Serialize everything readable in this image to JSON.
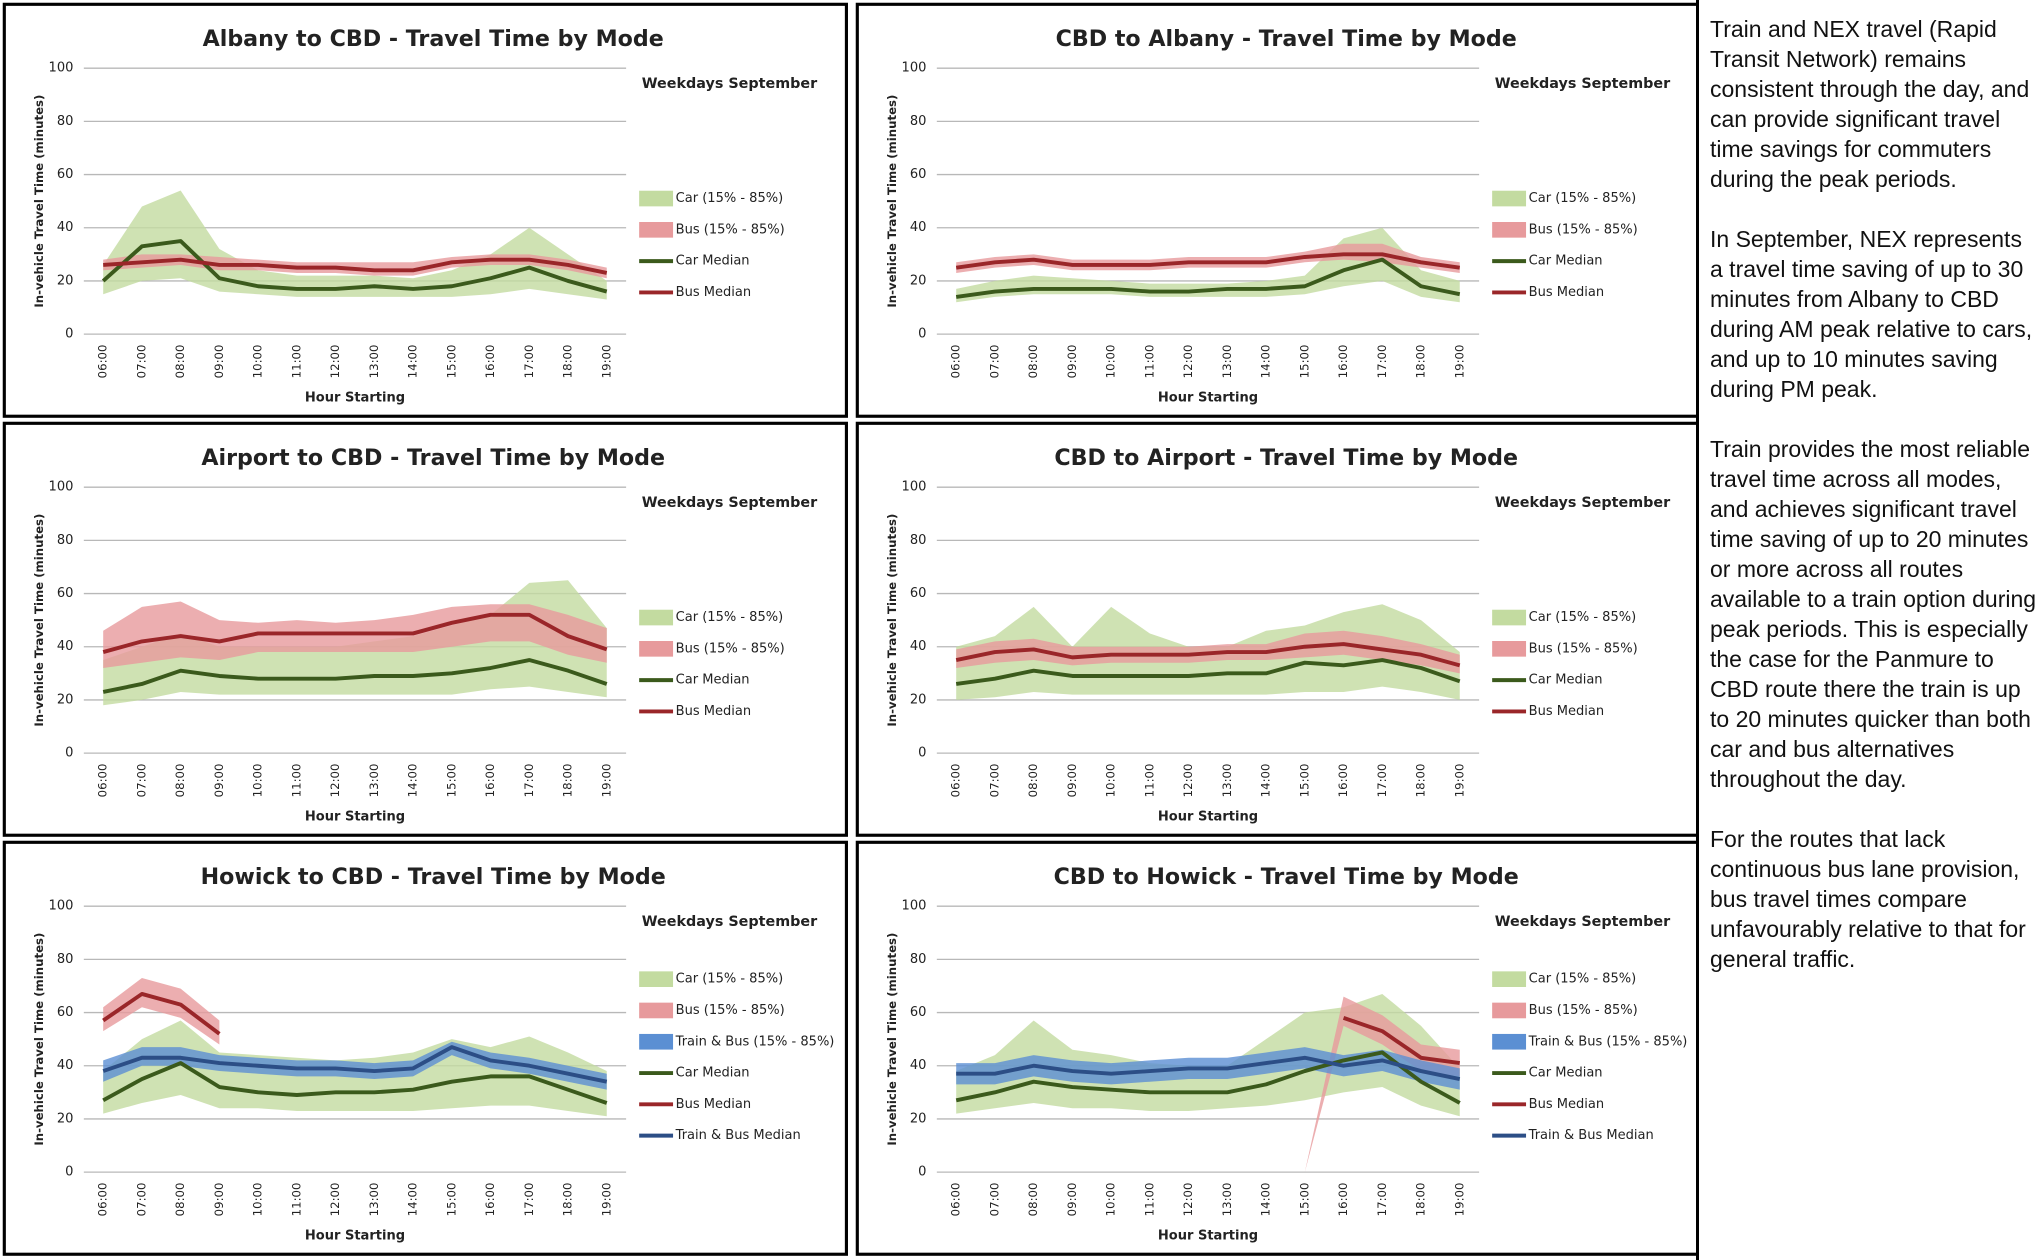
{
  "chart_data": [
    {
      "type": "line",
      "title": "Albany to CBD - Travel Time by Mode",
      "subtitle": "Weekdays September",
      "ylabel": "In-vehicle Travel Time (minutes)",
      "xlabel": "Hour Starting",
      "categories": [
        "06:00",
        "07:00",
        "08:00",
        "09:00",
        "10:00",
        "11:00",
        "12:00",
        "13:00",
        "14:00",
        "15:00",
        "16:00",
        "17:00",
        "18:00",
        "19:00"
      ],
      "ylim": [
        0,
        100
      ],
      "yticks": [
        0,
        20,
        40,
        60,
        80,
        100
      ],
      "grid": true,
      "series": [
        {
          "name": "Car (15% - 85%)",
          "color": "#c3dba0",
          "low": [
            15,
            20,
            21,
            16,
            15,
            14,
            14,
            14,
            14,
            14,
            15,
            17,
            15,
            13
          ],
          "high": [
            26,
            48,
            54,
            32,
            24,
            22,
            22,
            22,
            21,
            24,
            30,
            40,
            30,
            20
          ]
        },
        {
          "name": "Bus (15% - 85%)",
          "color": "#e79a9c",
          "low": [
            24,
            25,
            26,
            24,
            24,
            23,
            23,
            22,
            22,
            25,
            26,
            26,
            24,
            21
          ],
          "high": [
            28,
            30,
            30,
            29,
            28,
            27,
            27,
            27,
            27,
            29,
            30,
            30,
            28,
            25
          ]
        },
        {
          "name": "Car Median",
          "color": "#3b5a1c",
          "values": [
            20,
            33,
            35,
            21,
            18,
            17,
            17,
            18,
            17,
            18,
            21,
            25,
            20,
            16
          ]
        },
        {
          "name": "Bus Median",
          "color": "#9a2629",
          "values": [
            26,
            27,
            28,
            26,
            26,
            25,
            25,
            24,
            24,
            27,
            28,
            28,
            26,
            23
          ]
        }
      ]
    },
    {
      "type": "line",
      "title": "CBD to Albany - Travel Time by Mode",
      "subtitle": "Weekdays September",
      "ylabel": "In-vehicle Travel Time (minutes)",
      "xlabel": "Hour Starting",
      "categories": [
        "06:00",
        "07:00",
        "08:00",
        "09:00",
        "10:00",
        "11:00",
        "12:00",
        "13:00",
        "14:00",
        "15:00",
        "16:00",
        "17:00",
        "18:00",
        "19:00"
      ],
      "ylim": [
        0,
        100
      ],
      "yticks": [
        0,
        20,
        40,
        60,
        80,
        100
      ],
      "grid": true,
      "series": [
        {
          "name": "Car (15% - 85%)",
          "color": "#c3dba0",
          "low": [
            12,
            14,
            15,
            15,
            15,
            14,
            14,
            14,
            14,
            15,
            18,
            20,
            14,
            12
          ],
          "high": [
            17,
            20,
            22,
            21,
            20,
            19,
            19,
            19,
            20,
            22,
            36,
            40,
            24,
            20
          ]
        },
        {
          "name": "Bus (15% - 85%)",
          "color": "#e79a9c",
          "low": [
            23,
            25,
            26,
            24,
            24,
            24,
            25,
            25,
            25,
            27,
            28,
            27,
            25,
            23
          ],
          "high": [
            27,
            29,
            30,
            28,
            28,
            28,
            29,
            29,
            29,
            31,
            34,
            34,
            29,
            27
          ]
        },
        {
          "name": "Car Median",
          "color": "#3b5a1c",
          "values": [
            14,
            16,
            17,
            17,
            17,
            16,
            16,
            17,
            17,
            18,
            24,
            28,
            18,
            15
          ]
        },
        {
          "name": "Bus Median",
          "color": "#9a2629",
          "values": [
            25,
            27,
            28,
            26,
            26,
            26,
            27,
            27,
            27,
            29,
            30,
            30,
            27,
            25
          ]
        }
      ]
    },
    {
      "type": "line",
      "title": "Airport to CBD - Travel Time by Mode",
      "subtitle": "Weekdays September",
      "ylabel": "In-vehicle Travel Time (minutes)",
      "xlabel": "Hour Starting",
      "categories": [
        "06:00",
        "07:00",
        "08:00",
        "09:00",
        "10:00",
        "11:00",
        "12:00",
        "13:00",
        "14:00",
        "15:00",
        "16:00",
        "17:00",
        "18:00",
        "19:00"
      ],
      "ylim": [
        0,
        100
      ],
      "yticks": [
        0,
        20,
        40,
        60,
        80,
        100
      ],
      "grid": true,
      "series": [
        {
          "name": "Car (15% - 85%)",
          "color": "#c3dba0",
          "low": [
            18,
            20,
            23,
            22,
            22,
            22,
            22,
            22,
            22,
            22,
            24,
            25,
            23,
            21
          ],
          "high": [
            35,
            40,
            45,
            40,
            40,
            40,
            40,
            42,
            44,
            48,
            52,
            64,
            65,
            47
          ]
        },
        {
          "name": "Bus (15% - 85%)",
          "color": "#e79a9c",
          "low": [
            32,
            34,
            36,
            35,
            38,
            38,
            38,
            38,
            38,
            40,
            42,
            42,
            37,
            34
          ],
          "high": [
            46,
            55,
            57,
            50,
            49,
            50,
            49,
            50,
            52,
            55,
            56,
            56,
            52,
            47
          ]
        },
        {
          "name": "Car Median",
          "color": "#3b5a1c",
          "values": [
            23,
            26,
            31,
            29,
            28,
            28,
            28,
            29,
            29,
            30,
            32,
            35,
            31,
            26
          ]
        },
        {
          "name": "Bus Median",
          "color": "#9a2629",
          "values": [
            38,
            42,
            44,
            42,
            45,
            45,
            45,
            45,
            45,
            49,
            52,
            52,
            44,
            39
          ]
        }
      ]
    },
    {
      "type": "line",
      "title": "CBD to Airport - Travel Time by Mode",
      "subtitle": "Weekdays September",
      "ylabel": "In-vehicle Travel Time (minutes)",
      "xlabel": "Hour Starting",
      "categories": [
        "06:00",
        "07:00",
        "08:00",
        "09:00",
        "10:00",
        "11:00",
        "12:00",
        "13:00",
        "14:00",
        "15:00",
        "16:00",
        "17:00",
        "18:00",
        "19:00"
      ],
      "ylim": [
        0,
        100
      ],
      "yticks": [
        0,
        20,
        40,
        60,
        80,
        100
      ],
      "grid": true,
      "series": [
        {
          "name": "Car (15% - 85%)",
          "color": "#c3dba0",
          "low": [
            20,
            21,
            23,
            22,
            22,
            22,
            22,
            22,
            22,
            23,
            23,
            25,
            23,
            20
          ],
          "high": [
            40,
            44,
            55,
            40,
            55,
            45,
            40,
            40,
            46,
            48,
            53,
            56,
            50,
            38
          ]
        },
        {
          "name": "Bus (15% - 85%)",
          "color": "#e79a9c",
          "low": [
            32,
            34,
            35,
            33,
            34,
            34,
            34,
            35,
            35,
            36,
            37,
            35,
            33,
            30
          ],
          "high": [
            39,
            42,
            43,
            40,
            40,
            40,
            40,
            41,
            41,
            45,
            46,
            44,
            41,
            37
          ]
        },
        {
          "name": "Car Median",
          "color": "#3b5a1c",
          "values": [
            26,
            28,
            31,
            29,
            29,
            29,
            29,
            30,
            30,
            34,
            33,
            35,
            32,
            27
          ]
        },
        {
          "name": "Bus Median",
          "color": "#9a2629",
          "values": [
            35,
            38,
            39,
            36,
            37,
            37,
            37,
            38,
            38,
            40,
            41,
            39,
            37,
            33
          ]
        }
      ]
    },
    {
      "type": "line",
      "title": "Howick to CBD - Travel Time by Mode",
      "subtitle": "Weekdays September",
      "ylabel": "In-vehicle Travel Time (minutes)",
      "xlabel": "Hour Starting",
      "categories": [
        "06:00",
        "07:00",
        "08:00",
        "09:00",
        "10:00",
        "11:00",
        "12:00",
        "13:00",
        "14:00",
        "15:00",
        "16:00",
        "17:00",
        "18:00",
        "19:00"
      ],
      "ylim": [
        0,
        100
      ],
      "yticks": [
        0,
        20,
        40,
        60,
        80,
        100
      ],
      "grid": true,
      "series": [
        {
          "name": "Car (15% - 85%)",
          "color": "#c3dba0",
          "low": [
            22,
            26,
            29,
            24,
            24,
            23,
            23,
            23,
            23,
            24,
            25,
            25,
            23,
            21
          ],
          "high": [
            38,
            50,
            57,
            45,
            44,
            43,
            42,
            43,
            45,
            50,
            47,
            51,
            45,
            38
          ]
        },
        {
          "name": "Bus (15% - 85%)",
          "color": "#e79a9c",
          "low": [
            53,
            62,
            58,
            48,
            null,
            null,
            null,
            null,
            null,
            null,
            null,
            null,
            null,
            null
          ],
          "high": [
            62,
            73,
            69,
            57,
            null,
            null,
            null,
            null,
            null,
            null,
            null,
            null,
            null,
            null
          ]
        },
        {
          "name": "Train & Bus (15% - 85%)",
          "color": "#5b8fd3",
          "low": [
            34,
            40,
            40,
            38,
            37,
            36,
            36,
            35,
            36,
            44,
            39,
            37,
            34,
            31
          ],
          "high": [
            42,
            47,
            47,
            44,
            43,
            42,
            42,
            41,
            42,
            49,
            45,
            43,
            40,
            37
          ]
        },
        {
          "name": "Car Median",
          "color": "#3b5a1c",
          "values": [
            27,
            35,
            41,
            32,
            30,
            29,
            30,
            30,
            31,
            34,
            36,
            36,
            31,
            26
          ]
        },
        {
          "name": "Bus Median",
          "color": "#9a2629",
          "values": [
            57,
            67,
            63,
            52,
            null,
            null,
            null,
            null,
            null,
            null,
            null,
            null,
            null,
            null
          ]
        },
        {
          "name": "Train & Bus Median",
          "color": "#2c4e86",
          "values": [
            38,
            43,
            43,
            41,
            40,
            39,
            39,
            38,
            39,
            47,
            42,
            40,
            37,
            34
          ]
        }
      ]
    },
    {
      "type": "line",
      "title": "CBD to Howick - Travel Time by Mode",
      "subtitle": "Weekdays September",
      "ylabel": "In-vehicle Travel Time (minutes)",
      "xlabel": "Hour Starting",
      "categories": [
        "06:00",
        "07:00",
        "08:00",
        "09:00",
        "10:00",
        "11:00",
        "12:00",
        "13:00",
        "14:00",
        "15:00",
        "16:00",
        "17:00",
        "18:00",
        "19:00"
      ],
      "ylim": [
        0,
        100
      ],
      "yticks": [
        0,
        20,
        40,
        60,
        80,
        100
      ],
      "grid": true,
      "series": [
        {
          "name": "Car (15% - 85%)",
          "color": "#c3dba0",
          "low": [
            22,
            24,
            26,
            24,
            24,
            23,
            23,
            24,
            25,
            27,
            30,
            32,
            25,
            21
          ],
          "high": [
            38,
            44,
            57,
            46,
            44,
            41,
            40,
            40,
            50,
            60,
            62,
            67,
            55,
            39
          ]
        },
        {
          "name": "Bus (15% - 85%)",
          "color": "#e79a9c",
          "low": [
            null,
            null,
            null,
            null,
            null,
            null,
            null,
            null,
            null,
            0,
            55,
            48,
            38,
            36
          ],
          "high": [
            null,
            null,
            null,
            null,
            null,
            null,
            null,
            null,
            null,
            0,
            66,
            59,
            48,
            46
          ]
        },
        {
          "name": "Train & Bus (15% - 85%)",
          "color": "#5b8fd3",
          "low": [
            33,
            33,
            36,
            34,
            33,
            34,
            35,
            35,
            37,
            39,
            36,
            38,
            34,
            31
          ],
          "high": [
            41,
            41,
            44,
            42,
            41,
            42,
            43,
            43,
            45,
            47,
            44,
            46,
            42,
            39
          ]
        },
        {
          "name": "Car Median",
          "color": "#3b5a1c",
          "values": [
            27,
            30,
            34,
            32,
            31,
            30,
            30,
            30,
            33,
            38,
            42,
            45,
            34,
            26
          ]
        },
        {
          "name": "Bus Median",
          "color": "#9a2629",
          "values": [
            null,
            null,
            null,
            null,
            null,
            null,
            null,
            null,
            null,
            null,
            58,
            53,
            43,
            41
          ]
        },
        {
          "name": "Train & Bus Median",
          "color": "#2c4e86",
          "values": [
            37,
            37,
            40,
            38,
            37,
            38,
            39,
            39,
            41,
            43,
            40,
            42,
            38,
            35
          ]
        }
      ]
    }
  ],
  "notes": [
    "Train and NEX travel (Rapid Transit Network) remains consistent through the day, and can provide significant travel time savings for commuters during the peak periods.",
    "In September, NEX represents a travel time saving of up to 30 minutes from Albany to CBD during AM peak relative to cars, and up to 10 minutes saving during PM peak.",
    "Train provides the most reliable travel time across all modes, and achieves significant travel time saving of up to 20 minutes or more across all routes available to a train option during peak periods. This is especially the case for the Panmure to CBD route there the train is up to 20 minutes quicker than both car and bus alternatives throughout the day.",
    "For the routes that lack continuous bus lane provision, bus travel times compare unfavourably relative to that for general traffic."
  ]
}
